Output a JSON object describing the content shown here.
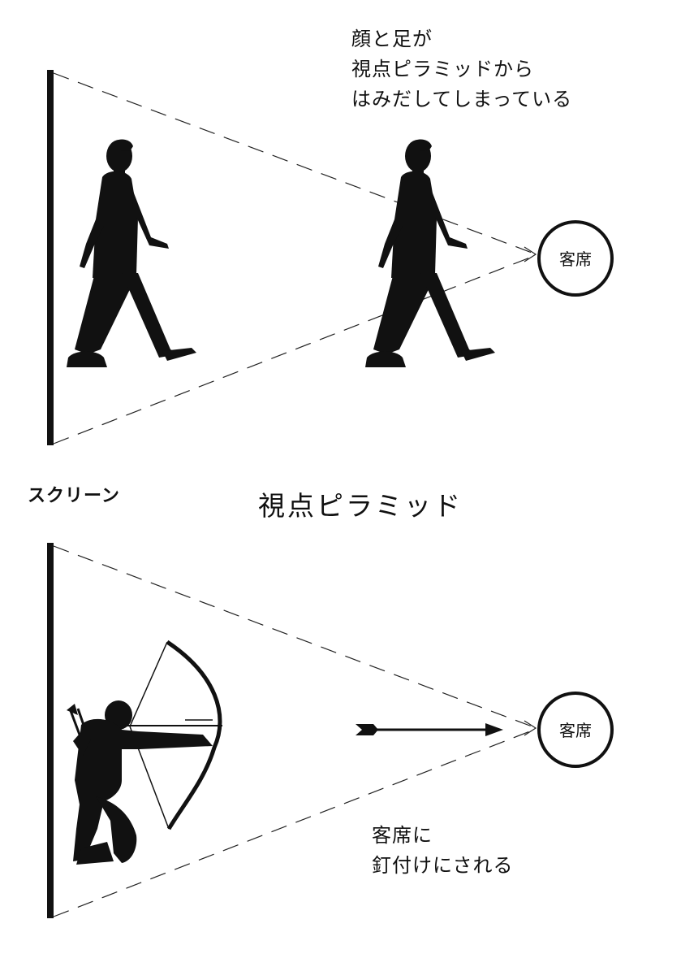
{
  "top_note": [
    "顔と足が",
    "視点ピラミッドから",
    "はみだしてしまっている"
  ],
  "screen_label": "スクリーン",
  "title": "視点ピラミッド",
  "seat_label_top": "客席",
  "seat_label_bottom": "客席",
  "bottom_note": [
    "客席に",
    "釘付けにされる"
  ],
  "icons": [
    "walking-man-silhouette",
    "walking-man-silhouette",
    "archer-silhouette",
    "arrow"
  ],
  "colors": {
    "ink": "#111111",
    "background": "#ffffff"
  }
}
